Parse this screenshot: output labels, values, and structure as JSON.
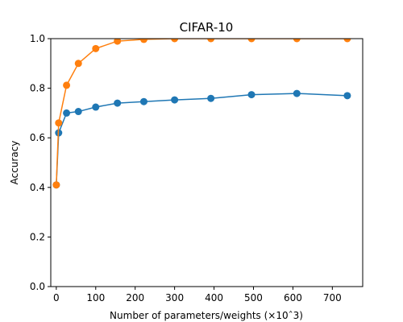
{
  "chart_data": {
    "type": "line",
    "title": "CIFAR-10",
    "xlabel": "Number of parameters/weights (×10ˆ3)",
    "ylabel": "Accuracy",
    "xlim": [
      -14,
      777
    ],
    "ylim": [
      0.0,
      1.0
    ],
    "xticks": [
      0,
      100,
      200,
      300,
      400,
      500,
      600,
      700
    ],
    "yticks": [
      0.0,
      0.2,
      0.4,
      0.6,
      0.8,
      1.0
    ],
    "xtick_labels": [
      "0",
      "100",
      "200",
      "300",
      "400",
      "500",
      "600",
      "700"
    ],
    "ytick_labels": [
      "0.0",
      "0.2",
      "0.4",
      "0.6",
      "0.8",
      "1.0"
    ],
    "grid": false,
    "series": [
      {
        "color": "#1f77b4",
        "x": [
          0,
          6,
          26,
          56,
          100,
          155,
          222,
          300,
          392,
          495,
          610,
          738
        ],
        "y": [
          0.41,
          0.62,
          0.7,
          0.706,
          0.724,
          0.74,
          0.746,
          0.753,
          0.759,
          0.774,
          0.779,
          0.77
        ]
      },
      {
        "color": "#ff7f0e",
        "x": [
          0,
          6,
          26,
          56,
          100,
          155,
          222,
          300,
          392,
          495,
          610,
          738
        ],
        "y": [
          0.41,
          0.66,
          0.812,
          0.9,
          0.96,
          0.99,
          0.997,
          1.0,
          1.0,
          1.0,
          1.0,
          1.0
        ]
      }
    ]
  }
}
